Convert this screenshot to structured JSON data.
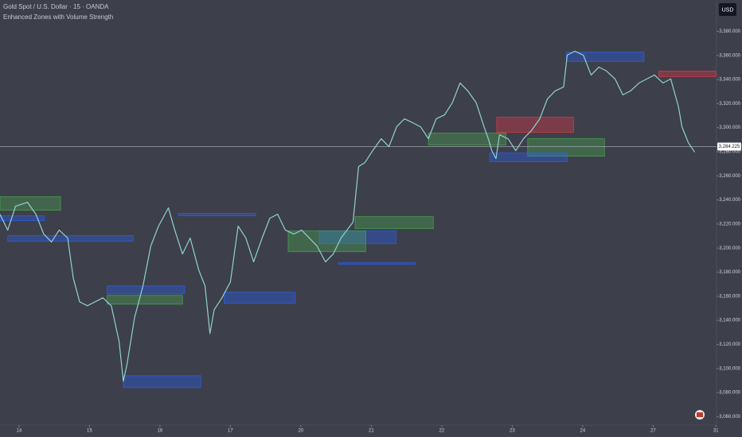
{
  "chart_data": {
    "type": "line",
    "title": "Gold Spot / U.S. Dollar · 15 · OANDA",
    "subtitle": "Enhanced Zones with Volume Strength",
    "currency": "USD",
    "xlim": [
      -0.27,
      9.9
    ],
    "ylim": [
      3053,
      3406
    ],
    "xticks": [
      {
        "value": 0,
        "label": "14"
      },
      {
        "value": 1,
        "label": "15"
      },
      {
        "value": 2,
        "label": "16"
      },
      {
        "value": 3,
        "label": "17"
      },
      {
        "value": 4,
        "label": "20"
      },
      {
        "value": 5,
        "label": "21"
      },
      {
        "value": 6,
        "label": "22"
      },
      {
        "value": 7,
        "label": "23"
      },
      {
        "value": 8,
        "label": "24"
      },
      {
        "value": 9,
        "label": "27"
      },
      {
        "value": 9.89,
        "label": "31"
      }
    ],
    "yticks": [
      {
        "value": 3380,
        "label": "3,380.000"
      },
      {
        "value": 3360,
        "label": "3,360.000"
      },
      {
        "value": 3340,
        "label": "3,340.000"
      },
      {
        "value": 3320,
        "label": "3,320.000"
      },
      {
        "value": 3300,
        "label": "3,300.000"
      },
      {
        "value": 3280,
        "label": "3,280.000"
      },
      {
        "value": 3260,
        "label": "3,260.000"
      },
      {
        "value": 3240,
        "label": "3,240.000"
      },
      {
        "value": 3220,
        "label": "3,220.000"
      },
      {
        "value": 3200,
        "label": "3,200.000"
      },
      {
        "value": 3180,
        "label": "3,180.000"
      },
      {
        "value": 3160,
        "label": "3,160.000"
      },
      {
        "value": 3140,
        "label": "3,140.000"
      },
      {
        "value": 3120,
        "label": "3,120.000"
      },
      {
        "value": 3100,
        "label": "3,100.000"
      },
      {
        "value": 3080,
        "label": "3,080.000"
      },
      {
        "value": 3060,
        "label": "3,060.000"
      }
    ],
    "last_price": {
      "value": 3284.225,
      "label": "3,284.225"
    },
    "x": [
      -0.27,
      -0.16,
      -0.05,
      0.12,
      0.24,
      0.35,
      0.46,
      0.57,
      0.69,
      0.77,
      0.86,
      0.97,
      1.08,
      1.19,
      1.31,
      1.42,
      1.48,
      1.53,
      1.64,
      1.76,
      1.87,
      1.98,
      2.12,
      2.21,
      2.32,
      2.43,
      2.55,
      2.64,
      2.71,
      2.77,
      2.88,
      3.0,
      3.11,
      3.22,
      3.33,
      3.45,
      3.56,
      3.67,
      3.78,
      3.9,
      4.01,
      4.12,
      4.23,
      4.35,
      4.46,
      4.57,
      4.74,
      4.82,
      4.91,
      5.02,
      5.14,
      5.25,
      5.36,
      5.47,
      5.59,
      5.7,
      5.81,
      5.92,
      6.04,
      6.15,
      6.26,
      6.37,
      6.49,
      6.6,
      6.66,
      6.71,
      6.77,
      6.82,
      6.94,
      7.05,
      7.16,
      7.27,
      7.39,
      7.5,
      7.61,
      7.73,
      7.78,
      7.89,
      8.01,
      8.12,
      8.23,
      8.34,
      8.46,
      8.57,
      8.68,
      8.8,
      8.91,
      9.02,
      9.14,
      9.25,
      9.36,
      9.41,
      9.5,
      9.59
    ],
    "series": [
      {
        "color": "#8fd3d0",
        "values": [
          3228.1,
          3214.9,
          3234.7,
          3238.0,
          3228.1,
          3211.6,
          3205.0,
          3214.9,
          3208.3,
          3175.2,
          3155.4,
          3152.1,
          3155.4,
          3158.7,
          3152.1,
          3122.4,
          3089.4,
          3102.6,
          3142.2,
          3168.6,
          3201.7,
          3218.2,
          3233.4,
          3214.9,
          3195.1,
          3208.3,
          3181.8,
          3168.6,
          3129.0,
          3148.8,
          3158.7,
          3171.9,
          3218.2,
          3208.3,
          3188.5,
          3208.3,
          3224.8,
          3228.1,
          3214.9,
          3211.6,
          3214.9,
          3208.3,
          3201.7,
          3188.5,
          3195.1,
          3208.3,
          3221.5,
          3267.7,
          3271.0,
          3280.9,
          3290.8,
          3284.2,
          3300.7,
          3307.3,
          3304.0,
          3300.7,
          3290.8,
          3307.3,
          3310.6,
          3320.6,
          3337.1,
          3330.5,
          3320.6,
          3300.7,
          3290.8,
          3280.9,
          3274.3,
          3294.1,
          3290.8,
          3280.9,
          3290.8,
          3297.4,
          3307.3,
          3323.9,
          3330.5,
          3333.8,
          3360.2,
          3363.5,
          3360.2,
          3343.7,
          3350.3,
          3347.0,
          3340.4,
          3327.2,
          3330.5,
          3337.1,
          3340.4,
          3343.7,
          3337.1,
          3340.4,
          3317.3,
          3300.7,
          3287.5,
          3279.6
        ]
      }
    ],
    "zones": [
      {
        "x": [
          -0.27,
          0.59
        ],
        "y": [
          3231.4,
          3242.6
        ],
        "color": "#4caf50"
      },
      {
        "x": [
          -0.27,
          0.36
        ],
        "y": [
          3222.8,
          3226.8
        ],
        "color": "#2962ff"
      },
      {
        "x": [
          -0.16,
          1.62
        ],
        "y": [
          3205.6,
          3210.3
        ],
        "color": "#2962ff"
      },
      {
        "x": [
          1.25,
          2.35
        ],
        "y": [
          3162.0,
          3168.6
        ],
        "color": "#2962ff"
      },
      {
        "x": [
          1.25,
          2.32
        ],
        "y": [
          3153.4,
          3160.7
        ],
        "color": "#4caf50"
      },
      {
        "x": [
          1.48,
          2.58
        ],
        "y": [
          3084.1,
          3094.0
        ],
        "color": "#2962ff"
      },
      {
        "x": [
          2.26,
          3.36
        ],
        "y": [
          3226.8,
          3228.8
        ],
        "color": "#2962ff"
      },
      {
        "x": [
          2.91,
          3.92
        ],
        "y": [
          3154.1,
          3163.4
        ],
        "color": "#2962ff"
      },
      {
        "x": [
          4.26,
          5.35
        ],
        "y": [
          3203.6,
          3214.2
        ],
        "color": "#2962ff"
      },
      {
        "x": [
          3.82,
          4.92
        ],
        "y": [
          3197.0,
          3214.2
        ],
        "color": "#4caf50"
      },
      {
        "x": [
          4.77,
          5.88
        ],
        "y": [
          3216.2,
          3226.1
        ],
        "color": "#4caf50"
      },
      {
        "x": [
          4.53,
          5.62
        ],
        "y": [
          3186.5,
          3187.8
        ],
        "color": "#2962ff"
      },
      {
        "x": [
          5.81,
          6.91
        ],
        "y": [
          3285.5,
          3295.5
        ],
        "color": "#4caf50"
      },
      {
        "x": [
          6.78,
          7.87
        ],
        "y": [
          3296.1,
          3308.7
        ],
        "color": "#f23645"
      },
      {
        "x": [
          7.22,
          8.31
        ],
        "y": [
          3276.3,
          3290.8
        ],
        "color": "#4caf50"
      },
      {
        "x": [
          6.68,
          7.78
        ],
        "y": [
          3271.7,
          3278.9
        ],
        "color": "#2962ff"
      },
      {
        "x": [
          7.77,
          8.87
        ],
        "y": [
          3354.9,
          3362.8
        ],
        "color": "#2962ff"
      },
      {
        "x": [
          9.08,
          9.89
        ],
        "y": [
          3342.4,
          3347.0
        ],
        "color": "#f23645"
      }
    ]
  }
}
